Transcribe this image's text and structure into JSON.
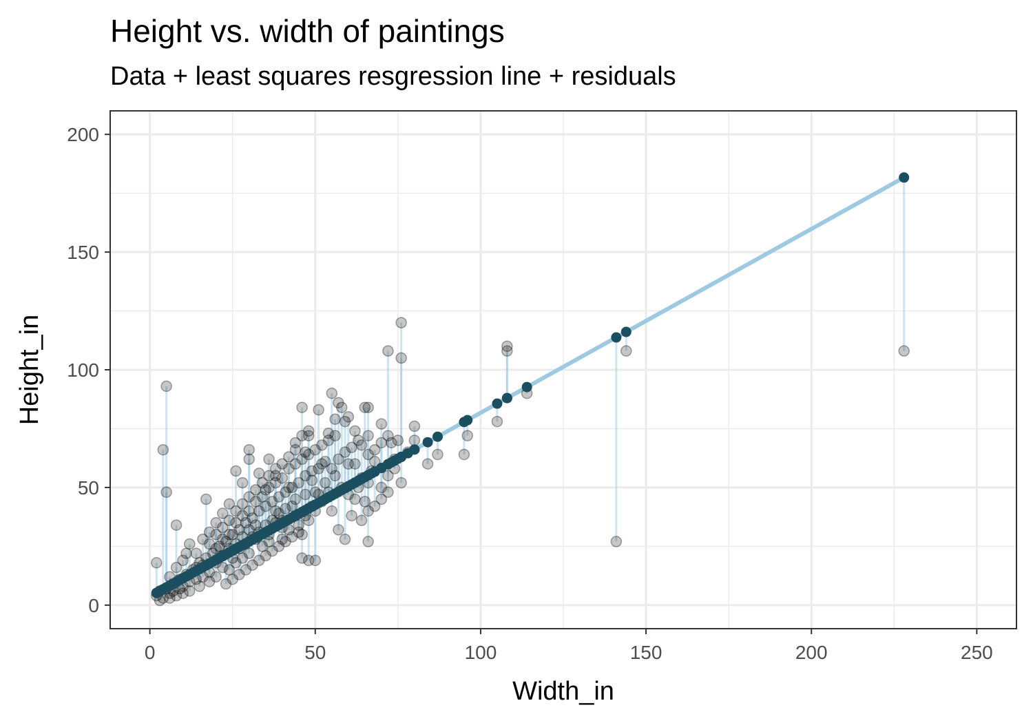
{
  "chart_data": {
    "type": "scatter",
    "title": "Height vs. width of paintings",
    "subtitle": "Data + least squares resgression line + residuals",
    "xlabel": "Width_in",
    "ylabel": "Height_in",
    "xlim": [
      -12,
      262
    ],
    "ylim": [
      -10,
      210
    ],
    "x_ticks": [
      0,
      50,
      100,
      150,
      200,
      250
    ],
    "y_ticks": [
      0,
      50,
      100,
      150,
      200
    ],
    "grid": true,
    "regression_line": {
      "intercept": 3.62,
      "slope": 0.781,
      "x_range": [
        2,
        228
      ],
      "color": "#9ecae1"
    },
    "colors": {
      "observed_point": "#000000",
      "fitted_point": "#1b4f5f",
      "residual_line": "#9ecae1",
      "panel_border": "#333333",
      "grid": "#ebebeb"
    },
    "points": [
      [
        228,
        108
      ],
      [
        141,
        27
      ],
      [
        144,
        108
      ],
      [
        108,
        110
      ],
      [
        108,
        108
      ],
      [
        114,
        90
      ],
      [
        105,
        78
      ],
      [
        95,
        64
      ],
      [
        96,
        72
      ],
      [
        87,
        64
      ],
      [
        84,
        60
      ],
      [
        76,
        120
      ],
      [
        72,
        108
      ],
      [
        76,
        105
      ],
      [
        70,
        77
      ],
      [
        66,
        84
      ],
      [
        65,
        84
      ],
      [
        66,
        72
      ],
      [
        66,
        27
      ],
      [
        72,
        48
      ],
      [
        74,
        62
      ],
      [
        80,
        76
      ],
      [
        73,
        69
      ],
      [
        60,
        60
      ],
      [
        59,
        78
      ],
      [
        57,
        86
      ],
      [
        55,
        90
      ],
      [
        51,
        83
      ],
      [
        56,
        79
      ],
      [
        54,
        73
      ],
      [
        48,
        72
      ],
      [
        46,
        84
      ],
      [
        47,
        65
      ],
      [
        44,
        66
      ],
      [
        52,
        60
      ],
      [
        50,
        48
      ],
      [
        49,
        53
      ],
      [
        47,
        47
      ],
      [
        45,
        31
      ],
      [
        46,
        20
      ],
      [
        48,
        19
      ],
      [
        50,
        19
      ],
      [
        40,
        33
      ],
      [
        38,
        40
      ],
      [
        35,
        49
      ],
      [
        33,
        56
      ],
      [
        30,
        66
      ],
      [
        28,
        52
      ],
      [
        26,
        57
      ],
      [
        24,
        43
      ],
      [
        22,
        39
      ],
      [
        20,
        35
      ],
      [
        18,
        31
      ],
      [
        16,
        28
      ],
      [
        14,
        22
      ],
      [
        12,
        26
      ],
      [
        10,
        19
      ],
      [
        8,
        16
      ],
      [
        6,
        12
      ],
      [
        5,
        93
      ],
      [
        5,
        48
      ],
      [
        4,
        66
      ],
      [
        2,
        18
      ],
      [
        8,
        34
      ],
      [
        11,
        22
      ],
      [
        17,
        45
      ],
      [
        30,
        62
      ],
      [
        36,
        62
      ],
      [
        38,
        55
      ],
      [
        42,
        50
      ],
      [
        44,
        45
      ],
      [
        40,
        36
      ],
      [
        36,
        30
      ],
      [
        32,
        28
      ],
      [
        30,
        22
      ],
      [
        28,
        20
      ],
      [
        26,
        18
      ],
      [
        24,
        15
      ],
      [
        22,
        16
      ],
      [
        20,
        12
      ],
      [
        18,
        10
      ],
      [
        15,
        8
      ],
      [
        12,
        6
      ],
      [
        10,
        5
      ],
      [
        8,
        4
      ],
      [
        6,
        3
      ],
      [
        4,
        3
      ],
      [
        3,
        2
      ],
      [
        2,
        4
      ],
      [
        3,
        6
      ],
      [
        5,
        7
      ],
      [
        7,
        9
      ],
      [
        9,
        11
      ],
      [
        11,
        13
      ],
      [
        13,
        15
      ],
      [
        15,
        18
      ],
      [
        17,
        20
      ],
      [
        19,
        22
      ],
      [
        21,
        25
      ],
      [
        23,
        27
      ],
      [
        25,
        30
      ],
      [
        27,
        32
      ],
      [
        29,
        35
      ],
      [
        31,
        37
      ],
      [
        33,
        40
      ],
      [
        35,
        42
      ],
      [
        37,
        44
      ],
      [
        39,
        46
      ],
      [
        41,
        48
      ],
      [
        43,
        50
      ],
      [
        45,
        52
      ],
      [
        47,
        55
      ],
      [
        49,
        57
      ],
      [
        51,
        58
      ],
      [
        53,
        61
      ],
      [
        55,
        40
      ],
      [
        57,
        32
      ],
      [
        59,
        28
      ],
      [
        61,
        38
      ],
      [
        62,
        45
      ],
      [
        63,
        50
      ],
      [
        64,
        54
      ],
      [
        66,
        52
      ],
      [
        67,
        57
      ],
      [
        68,
        61
      ],
      [
        70,
        50
      ],
      [
        72,
        55
      ],
      [
        74,
        58
      ],
      [
        76,
        52
      ],
      [
        34,
        25
      ],
      [
        36,
        27
      ],
      [
        38,
        35
      ],
      [
        40,
        28
      ],
      [
        42,
        32
      ],
      [
        44,
        38
      ],
      [
        46,
        30
      ],
      [
        48,
        36
      ],
      [
        50,
        40
      ],
      [
        52,
        44
      ],
      [
        54,
        48
      ],
      [
        56,
        55
      ],
      [
        58,
        50
      ],
      [
        60,
        47
      ],
      [
        25,
        20
      ],
      [
        27,
        24
      ],
      [
        29,
        26
      ],
      [
        31,
        29
      ],
      [
        33,
        31
      ],
      [
        35,
        34
      ],
      [
        37,
        36
      ],
      [
        39,
        39
      ],
      [
        41,
        41
      ],
      [
        43,
        42
      ],
      [
        20,
        18
      ],
      [
        22,
        21
      ],
      [
        24,
        24
      ],
      [
        26,
        26
      ],
      [
        28,
        29
      ],
      [
        30,
        32
      ],
      [
        32,
        34
      ],
      [
        18,
        14
      ],
      [
        16,
        12
      ],
      [
        14,
        11
      ],
      [
        12,
        10
      ],
      [
        10,
        8
      ],
      [
        9,
        7
      ],
      [
        7,
        6
      ],
      [
        6,
        5
      ],
      [
        14,
        16
      ],
      [
        16,
        17
      ],
      [
        20,
        24
      ],
      [
        22,
        28
      ],
      [
        24,
        30
      ],
      [
        26,
        35
      ],
      [
        28,
        38
      ],
      [
        30,
        40
      ],
      [
        32,
        44
      ],
      [
        34,
        46
      ],
      [
        36,
        50
      ],
      [
        38,
        52
      ],
      [
        40,
        54
      ],
      [
        42,
        58
      ],
      [
        44,
        60
      ],
      [
        46,
        62
      ],
      [
        48,
        64
      ],
      [
        50,
        66
      ],
      [
        52,
        68
      ],
      [
        54,
        70
      ],
      [
        56,
        72
      ],
      [
        62,
        60
      ],
      [
        64,
        36
      ],
      [
        65,
        44
      ],
      [
        66,
        40
      ],
      [
        68,
        42
      ],
      [
        70,
        45
      ],
      [
        23,
        9
      ],
      [
        25,
        11
      ],
      [
        27,
        13
      ],
      [
        29,
        15
      ],
      [
        31,
        17
      ],
      [
        33,
        19
      ],
      [
        35,
        21
      ],
      [
        37,
        23
      ],
      [
        39,
        25
      ],
      [
        41,
        27
      ],
      [
        43,
        29
      ],
      [
        45,
        34
      ],
      [
        47,
        38
      ],
      [
        49,
        42
      ],
      [
        51,
        47
      ],
      [
        53,
        52
      ],
      [
        55,
        58
      ],
      [
        57,
        62
      ],
      [
        59,
        65
      ],
      [
        61,
        67
      ],
      [
        63,
        70
      ],
      [
        58,
        84
      ],
      [
        60,
        80
      ],
      [
        62,
        74
      ],
      [
        64,
        68
      ],
      [
        66,
        64
      ],
      [
        68,
        66
      ],
      [
        70,
        69
      ],
      [
        72,
        72
      ],
      [
        75,
        70
      ],
      [
        78,
        65
      ],
      [
        80,
        70
      ],
      [
        18,
        26
      ],
      [
        20,
        30
      ],
      [
        22,
        33
      ],
      [
        24,
        36
      ],
      [
        26,
        40
      ],
      [
        28,
        43
      ],
      [
        30,
        46
      ],
      [
        32,
        49
      ],
      [
        34,
        52
      ],
      [
        36,
        55
      ],
      [
        38,
        58
      ],
      [
        40,
        60
      ],
      [
        42,
        63
      ],
      [
        44,
        69
      ],
      [
        46,
        72
      ],
      [
        48,
        74
      ]
    ]
  }
}
